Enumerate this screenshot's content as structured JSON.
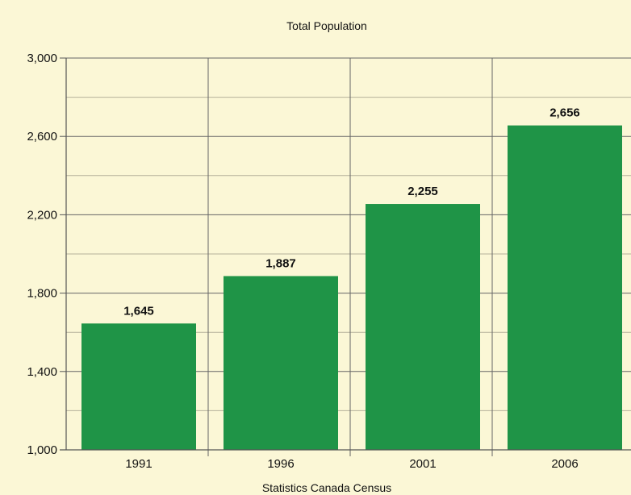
{
  "chart_data": {
    "type": "bar",
    "title": "Total Population",
    "xlabel": "Statistics Canada Census",
    "ylabel": "",
    "categories": [
      "1991",
      "1996",
      "2001",
      "2006"
    ],
    "values": [
      1645,
      1887,
      2255,
      2656
    ],
    "data_labels": [
      "1,645",
      "1,887",
      "2,255",
      "2,656"
    ],
    "ylim": [
      1000,
      3000
    ],
    "yticks": [
      1000,
      1400,
      1800,
      2200,
      2600,
      3000
    ],
    "ytick_labels": [
      "1,000",
      "1,400",
      "1,800",
      "2,200",
      "2,600",
      "3,000"
    ],
    "grid": true,
    "legend": "none",
    "colors": {
      "background": "#fbf7d6",
      "bar": "#1f9447",
      "axis": "#555555",
      "grid": "#666666"
    }
  }
}
